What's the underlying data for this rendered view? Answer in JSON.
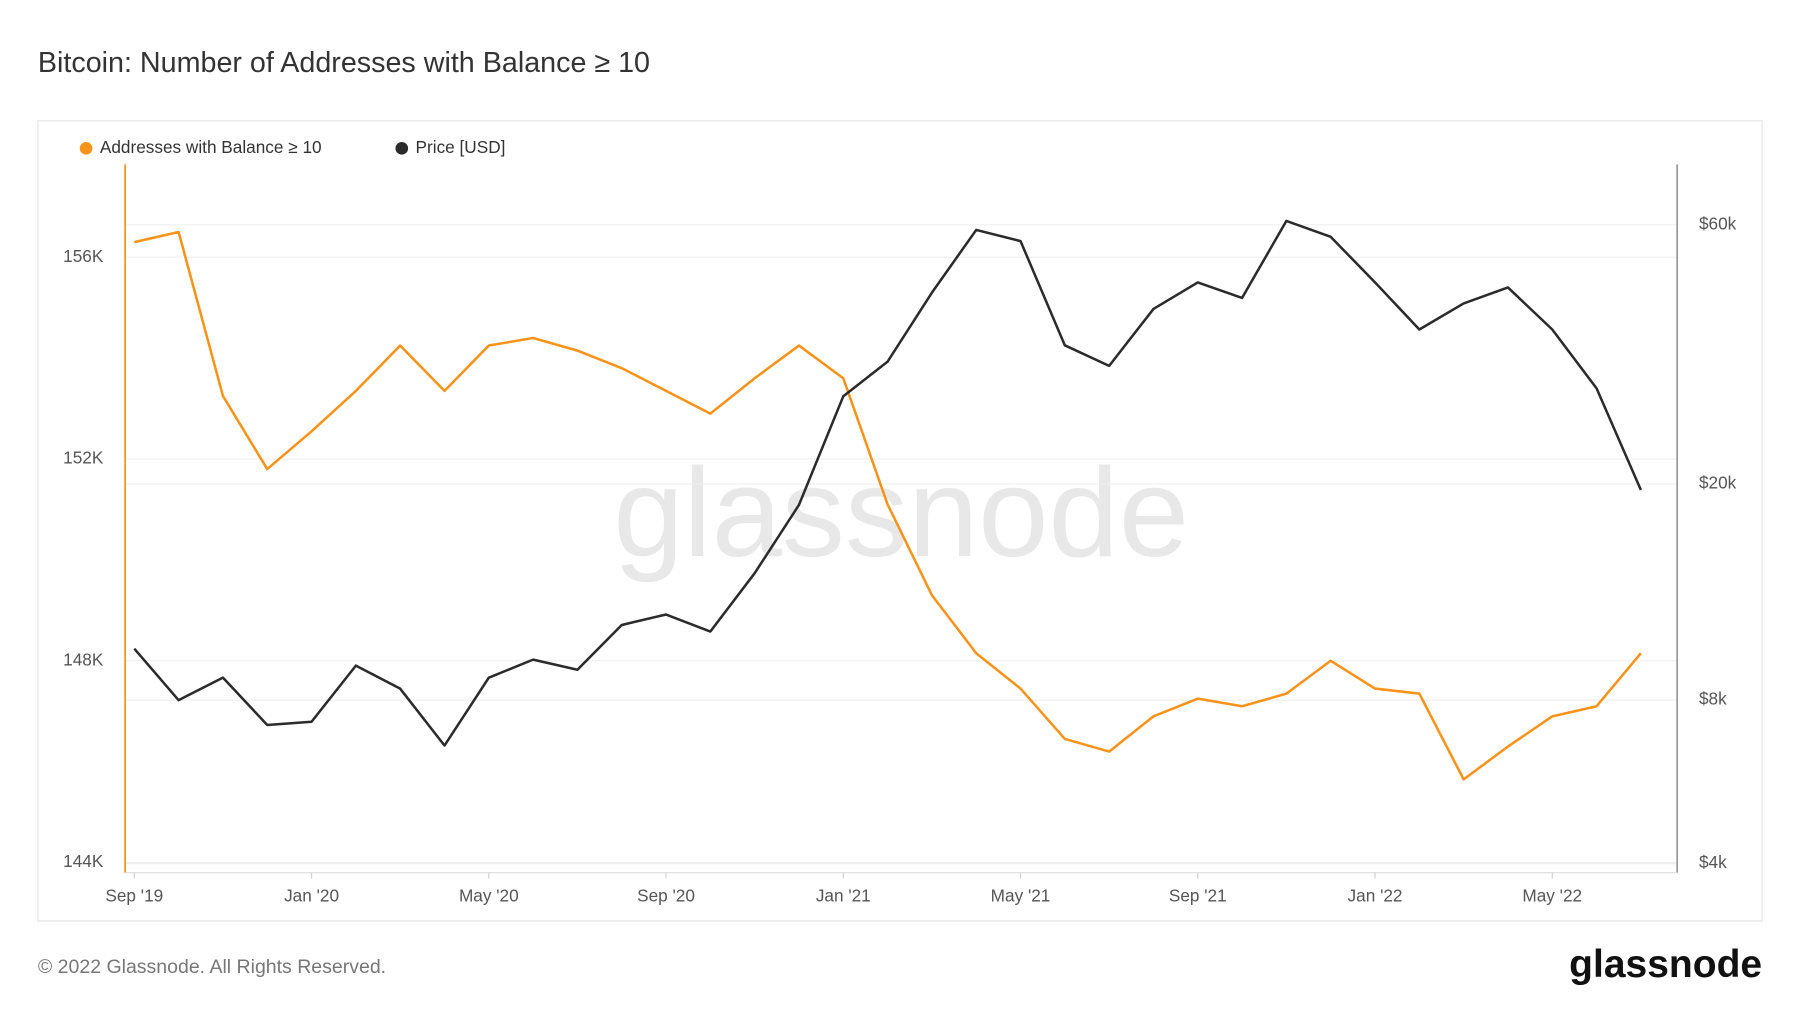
{
  "chart_data": {
    "type": "line",
    "title": "Bitcoin: Number of Addresses with Balance ≥ 10",
    "watermark": "glassnode",
    "footer": {
      "copyright": "© 2022 Glassnode. All Rights Reserved.",
      "logo": "glassnode"
    },
    "x": [
      "2019-09",
      "2019-10",
      "2019-11",
      "2019-12",
      "2020-01",
      "2020-02",
      "2020-03",
      "2020-04",
      "2020-05",
      "2020-06",
      "2020-07",
      "2020-08",
      "2020-09",
      "2020-10",
      "2020-11",
      "2020-12",
      "2021-01",
      "2021-02",
      "2021-03",
      "2021-04",
      "2021-05",
      "2021-06",
      "2021-07",
      "2021-08",
      "2021-09",
      "2021-10",
      "2021-11",
      "2021-12",
      "2022-01",
      "2022-02",
      "2022-03",
      "2022-04",
      "2022-05",
      "2022-06",
      "2022-07"
    ],
    "xlim": [
      "2019-09",
      "2022-08"
    ],
    "xticks": [
      {
        "value": "2019-09",
        "label": "Sep '19"
      },
      {
        "value": "2020-01",
        "label": "Jan '20"
      },
      {
        "value": "2020-05",
        "label": "May '20"
      },
      {
        "value": "2020-09",
        "label": "Sep '20"
      },
      {
        "value": "2021-01",
        "label": "Jan '21"
      },
      {
        "value": "2021-05",
        "label": "May '21"
      },
      {
        "value": "2021-09",
        "label": "Sep '21"
      },
      {
        "value": "2022-01",
        "label": "Jan '22"
      },
      {
        "value": "2022-05",
        "label": "May '22"
      }
    ],
    "ylim": [
      143800,
      157840
    ],
    "yticks": [
      {
        "value": 144000,
        "label": "144K"
      },
      {
        "value": 148000,
        "label": "148K"
      },
      {
        "value": 152000,
        "label": "152K"
      },
      {
        "value": 156000,
        "label": "156K"
      }
    ],
    "y2lim": [
      3850,
      77500
    ],
    "y2scale": "log",
    "y2ticks": [
      {
        "value": 4000,
        "label": "$4k"
      },
      {
        "value": 8000,
        "label": "$8k"
      },
      {
        "value": 20000,
        "label": "$20k"
      },
      {
        "value": 60000,
        "label": "$60k"
      }
    ],
    "grid": true,
    "legend": "top-left",
    "series": [
      {
        "name": "Addresses with Balance ≥ 10",
        "color": "#f7931a",
        "values": [
          156300,
          156500,
          153250,
          151800,
          152550,
          153350,
          154250,
          153350,
          154250,
          154400,
          154150,
          153800,
          153350,
          152900,
          153600,
          154250,
          153600,
          151100,
          149300,
          148150,
          147450,
          146450,
          146200,
          146900,
          147250,
          147100,
          147350,
          148000,
          147450,
          147350,
          145650,
          146300,
          146900,
          147100,
          148150
        ]
      },
      {
        "name": "Price [USD]",
        "color": "#2b2b2b",
        "axis": "y2",
        "values": [
          9950,
          8000,
          8800,
          7200,
          7300,
          9260,
          8400,
          6600,
          8800,
          9500,
          9100,
          11000,
          11500,
          10700,
          13700,
          18300,
          29000,
          33600,
          45000,
          58700,
          56000,
          36000,
          33000,
          42000,
          47000,
          44000,
          61000,
          57000,
          47000,
          38500,
          43000,
          46000,
          38500,
          30000,
          19500
        ]
      }
    ]
  }
}
